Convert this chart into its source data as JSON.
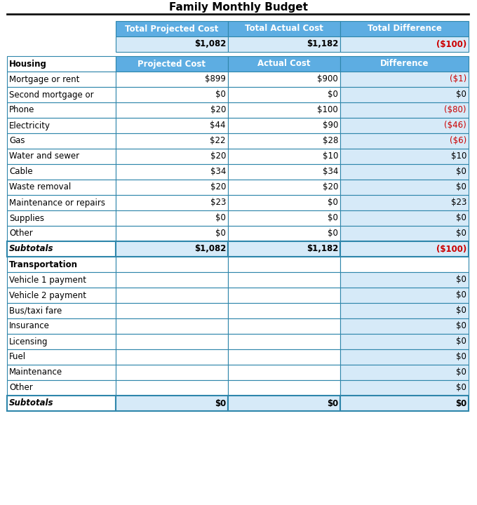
{
  "title": "Family Monthly Budget",
  "header_bg": "#5DADE2",
  "header_text_color": "#FFFFFF",
  "cell_bg_light": "#D6EAF8",
  "cell_bg_white": "#FFFFFF",
  "text_color_black": "#000000",
  "text_color_red": "#CC0000",
  "border_color": "#2E86AB",
  "summary_headers": [
    "Total Projected Cost",
    "Total Actual Cost",
    "Total Difference"
  ],
  "summary_values": [
    "$1,082",
    "$1,182",
    "($100)"
  ],
  "col_headers": [
    "Projected Cost",
    "Actual Cost",
    "Difference"
  ],
  "section1_title": "Housing",
  "housing_rows": [
    {
      "label": "Mortgage or rent",
      "proj": "$899",
      "actual": "$900",
      "diff": "($1)",
      "red": true
    },
    {
      "label": "Second mortgage or",
      "proj": "$0",
      "actual": "$0",
      "diff": "$0",
      "red": false
    },
    {
      "label": "Phone",
      "proj": "$20",
      "actual": "$100",
      "diff": "($80)",
      "red": true
    },
    {
      "label": "Electricity",
      "proj": "$44",
      "actual": "$90",
      "diff": "($46)",
      "red": true
    },
    {
      "label": "Gas",
      "proj": "$22",
      "actual": "$28",
      "diff": "($6)",
      "red": true
    },
    {
      "label": "Water and sewer",
      "proj": "$20",
      "actual": "$10",
      "diff": "$10",
      "red": false
    },
    {
      "label": "Cable",
      "proj": "$34",
      "actual": "$34",
      "diff": "$0",
      "red": false
    },
    {
      "label": "Waste removal",
      "proj": "$20",
      "actual": "$20",
      "diff": "$0",
      "red": false
    },
    {
      "label": "Maintenance or repairs",
      "proj": "$23",
      "actual": "$0",
      "diff": "$23",
      "red": false
    },
    {
      "label": "Supplies",
      "proj": "$0",
      "actual": "$0",
      "diff": "$0",
      "red": false
    },
    {
      "label": "Other",
      "proj": "$0",
      "actual": "$0",
      "diff": "$0",
      "red": false
    }
  ],
  "housing_subtotal": {
    "label": "Subtotals",
    "proj": "$1,082",
    "actual": "$1,182",
    "diff": "($100)",
    "red": true
  },
  "section2_title": "Transportation",
  "transport_rows": [
    {
      "label": "Vehicle 1 payment",
      "proj": "",
      "actual": "",
      "diff": "$0"
    },
    {
      "label": "Vehicle 2 payment",
      "proj": "",
      "actual": "",
      "diff": "$0"
    },
    {
      "label": "Bus/taxi fare",
      "proj": "",
      "actual": "",
      "diff": "$0"
    },
    {
      "label": "Insurance",
      "proj": "",
      "actual": "",
      "diff": "$0"
    },
    {
      "label": "Licensing",
      "proj": "",
      "actual": "",
      "diff": "$0"
    },
    {
      "label": "Fuel",
      "proj": "",
      "actual": "",
      "diff": "$0"
    },
    {
      "label": "Maintenance",
      "proj": "",
      "actual": "",
      "diff": "$0"
    },
    {
      "label": "Other",
      "proj": "",
      "actual": "",
      "diff": "$0"
    }
  ],
  "transport_subtotal": {
    "label": "Subtotals",
    "proj": "$0",
    "actual": "$0",
    "diff": "$0"
  }
}
